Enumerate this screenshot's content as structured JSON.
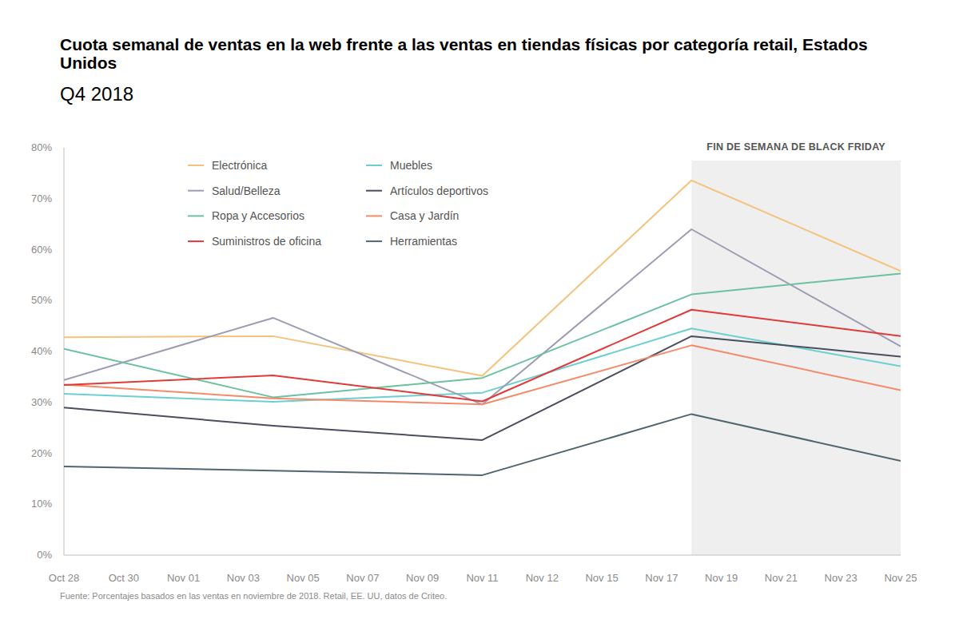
{
  "chart_data": {
    "type": "line",
    "title": "Cuota semanal de ventas en la web frente a las ventas en tiendas físicas por categoría retail, Estados Unidos",
    "subtitle": "Q4 2018",
    "source": "Fuente: Porcentajes basados en las ventas en noviembre de 2018. Retail, EE. UU, datos de Criteo.",
    "x": [
      0,
      3.5,
      7,
      10.5,
      14
    ],
    "xlim": [
      0,
      14
    ],
    "xticks": [
      {
        "value": 0,
        "label": "Oct 28"
      },
      {
        "value": 1,
        "label": "Oct 30"
      },
      {
        "value": 2,
        "label": "Nov 01"
      },
      {
        "value": 3,
        "label": "Nov 03"
      },
      {
        "value": 4,
        "label": "Nov 05"
      },
      {
        "value": 5,
        "label": "Nov 07"
      },
      {
        "value": 6,
        "label": "Nov 09"
      },
      {
        "value": 7,
        "label": "Nov 11"
      },
      {
        "value": 8,
        "label": "Nov 12"
      },
      {
        "value": 9,
        "label": "Nov 15"
      },
      {
        "value": 10,
        "label": "Nov 17"
      },
      {
        "value": 11,
        "label": "Nov 19"
      },
      {
        "value": 12,
        "label": "Nov 21"
      },
      {
        "value": 13,
        "label": "Nov 23"
      },
      {
        "value": 14,
        "label": "Nov 25"
      }
    ],
    "ylim": [
      0,
      80
    ],
    "yticks": [
      {
        "value": 0,
        "label": "0%"
      },
      {
        "value": 10,
        "label": "10%"
      },
      {
        "value": 20,
        "label": "20%"
      },
      {
        "value": 30,
        "label": "30%"
      },
      {
        "value": 40,
        "label": "40%"
      },
      {
        "value": 50,
        "label": "50%"
      },
      {
        "value": 60,
        "label": "60%"
      },
      {
        "value": 70,
        "label": "70%"
      },
      {
        "value": 80,
        "label": "80%"
      }
    ],
    "grid": false,
    "legend": "top-left",
    "annotations": [
      {
        "text": "FIN DE SEMANA DE BLACK FRIDAY",
        "x": [
          10.5,
          14
        ]
      }
    ],
    "series": [
      {
        "name": "Electrónica",
        "color": "#f5c27c",
        "values": [
          42.8,
          43.0,
          35.2,
          73.6,
          55.8
        ]
      },
      {
        "name": "Muebles",
        "color": "#6ccfd0",
        "values": [
          31.7,
          30.1,
          31.9,
          44.5,
          37.1
        ]
      },
      {
        "name": "Salud/Belleza",
        "color": "#9c9db2",
        "values": [
          34.4,
          46.6,
          29.6,
          64.0,
          41.0
        ]
      },
      {
        "name": "Artículos deportivos",
        "color": "#4a4e5e",
        "values": [
          29.0,
          25.4,
          22.6,
          43.0,
          39.0
        ]
      },
      {
        "name": "Ropa y Accesorios",
        "color": "#6cc19f",
        "values": [
          40.5,
          31.0,
          34.8,
          51.2,
          55.3
        ]
      },
      {
        "name": "Casa y Jardín",
        "color": "#f48a6a",
        "values": [
          33.5,
          30.8,
          29.6,
          41.2,
          32.4
        ]
      },
      {
        "name": "Suministros de oficina",
        "color": "#e03a3a",
        "values": [
          33.4,
          35.3,
          30.2,
          48.2,
          43.0
        ]
      },
      {
        "name": "Herramientas",
        "color": "#4f6570",
        "values": [
          17.4,
          16.6,
          15.7,
          27.7,
          18.5
        ]
      }
    ]
  }
}
